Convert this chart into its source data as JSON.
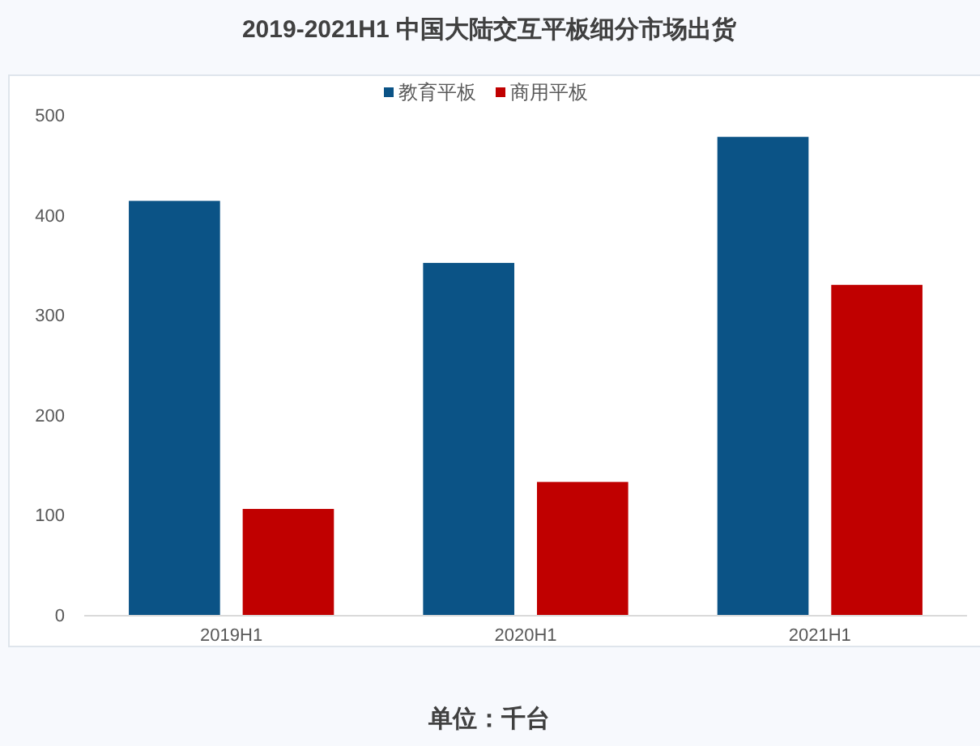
{
  "chart_data": {
    "type": "bar",
    "title": "2019-2021H1 中国大陆交互平板细分市场出货",
    "categories": [
      "2019H1",
      "2020H1",
      "2021H1"
    ],
    "series": [
      {
        "name": "教育平板",
        "color": "#0b5386",
        "values": [
          414,
          352,
          478
        ]
      },
      {
        "name": "商用平板",
        "color": "#c00000",
        "values": [
          106,
          133,
          330
        ]
      }
    ],
    "ylim": [
      0,
      500
    ],
    "yticks": [
      0,
      100,
      200,
      300,
      400,
      500
    ],
    "legend": "top",
    "annotations": [
      "单位：千台"
    ]
  }
}
